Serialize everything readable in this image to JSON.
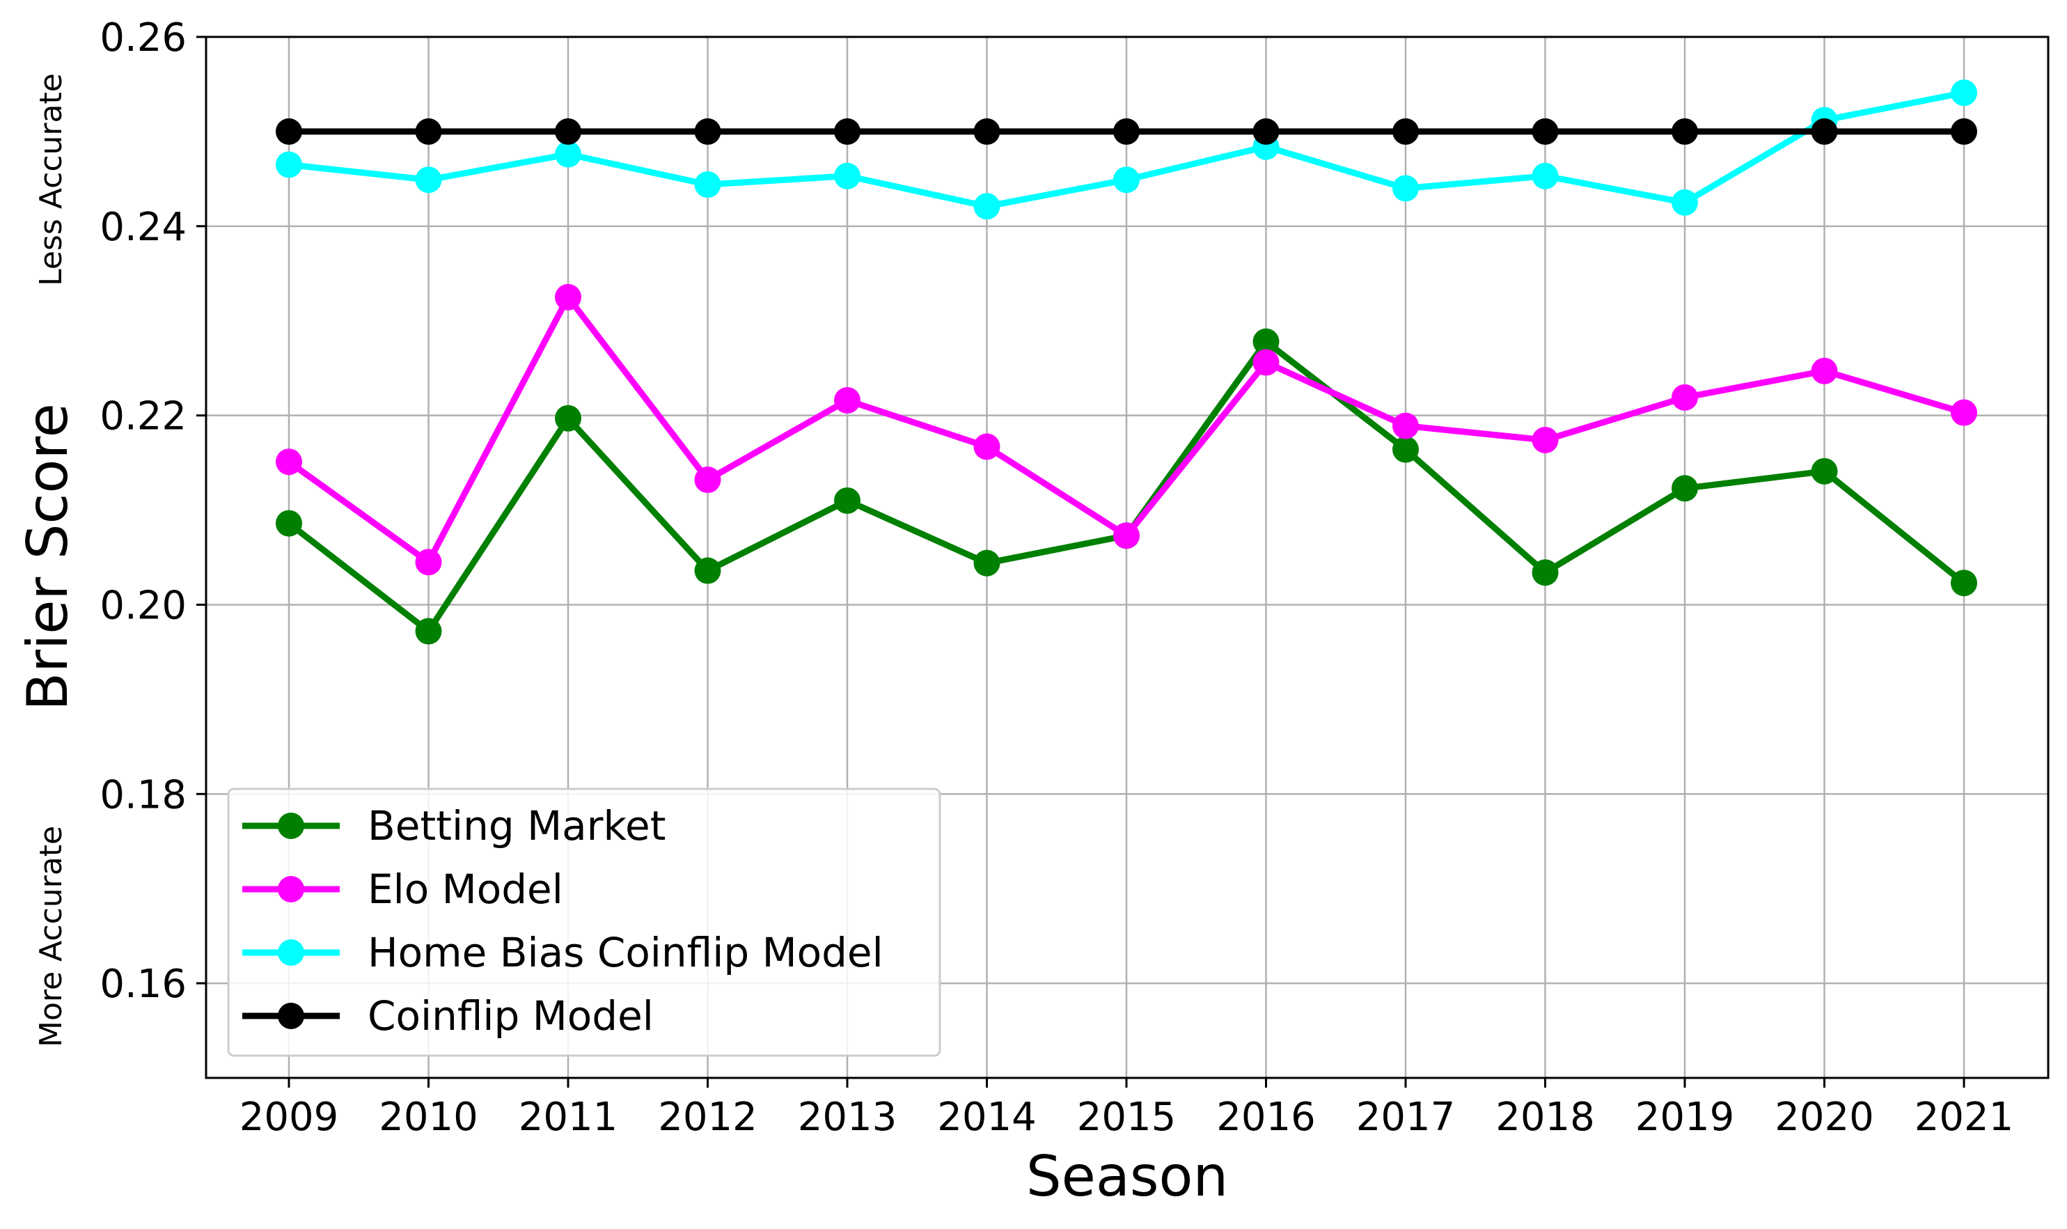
{
  "chart_data": {
    "type": "line",
    "xlabel": "Season",
    "ylabel": "Brier Score",
    "ylim": [
      0.15,
      0.26
    ],
    "y_ticks": [
      "0.16",
      "0.18",
      "0.20",
      "0.22",
      "0.24",
      "0.26"
    ],
    "y_tick_values": [
      0.16,
      0.18,
      0.2,
      0.22,
      0.24,
      0.26
    ],
    "x": [
      "2009",
      "2010",
      "2011",
      "2012",
      "2013",
      "2014",
      "2015",
      "2016",
      "2017",
      "2018",
      "2019",
      "2020",
      "2021"
    ],
    "annotations": {
      "top": "Less Accurate",
      "bottom": "More Accurate"
    },
    "grid": true,
    "legend_position": "lower-left",
    "series": [
      {
        "name": "Betting Market",
        "color": "#008000",
        "values": [
          0.2086,
          0.1972,
          0.2197,
          0.2036,
          0.211,
          0.2044,
          0.2073,
          0.2278,
          0.2164,
          0.2034,
          0.2123,
          0.2141,
          0.2023
        ]
      },
      {
        "name": "Elo Model",
        "color": "#ff00ff",
        "values": [
          0.2151,
          0.2045,
          0.2325,
          0.2132,
          0.2216,
          0.2167,
          0.2073,
          0.2256,
          0.2189,
          0.2174,
          0.2219,
          0.2247,
          0.2203
        ]
      },
      {
        "name": "Home Bias Coinflip Model",
        "color": "#00ffff",
        "values": [
          0.2465,
          0.2449,
          0.2476,
          0.2444,
          0.2453,
          0.2421,
          0.2449,
          0.2484,
          0.244,
          0.2453,
          0.2425,
          0.2512,
          0.2541
        ]
      },
      {
        "name": "Coinflip Model",
        "color": "#000000",
        "values": [
          0.25,
          0.25,
          0.25,
          0.25,
          0.25,
          0.25,
          0.25,
          0.25,
          0.25,
          0.25,
          0.25,
          0.25,
          0.25
        ]
      }
    ]
  }
}
